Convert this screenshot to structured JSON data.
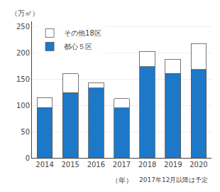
{
  "chart_data": {
    "type": "bar",
    "stacked": true,
    "ylabel": "（万㎡）",
    "annotations": [
      "（年）",
      "2017年12月以降は予定"
    ],
    "categories": [
      "2014",
      "2015",
      "2016",
      "2017",
      "2018",
      "2019",
      "2020"
    ],
    "series": [
      {
        "name": "都心５区",
        "color": "#1E78C8",
        "values": [
          96,
          124,
          133,
          95,
          174,
          161,
          168
        ]
      },
      {
        "name": "その他18区",
        "color": "#FFFFFF",
        "values": [
          19,
          36,
          10,
          18,
          29,
          27,
          50
        ]
      }
    ],
    "ylim": [
      0,
      260
    ],
    "yticks": [
      0,
      50,
      100,
      150,
      200,
      250
    ],
    "grid": true,
    "legend": "upper left"
  }
}
